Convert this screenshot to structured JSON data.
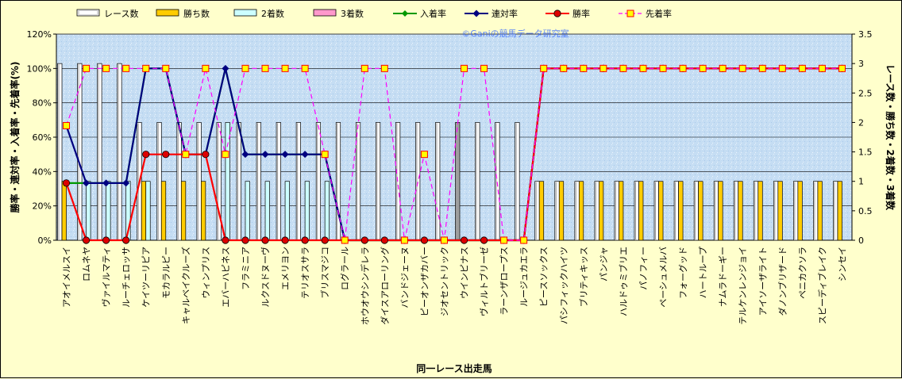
{
  "chart_data": {
    "type": "bar",
    "title": "",
    "xlabel": "同一レース出走馬",
    "ylabel_left": "勝率・連対率・入着率・先着率(%)",
    "ylabel_right": "レース数・勝ち数・2着数・3着数",
    "watermark": "©Ganiの競馬データ研究室",
    "legend_position": "top",
    "grid": true,
    "ylim_left": [
      0,
      120
    ],
    "ylim_right": [
      0,
      3.5
    ],
    "yticks_left": [
      "0%",
      "20%",
      "40%",
      "60%",
      "80%",
      "100%",
      "120%"
    ],
    "yticks_right": [
      "0",
      "0.5",
      "1",
      "1.5",
      "2",
      "2.5",
      "3",
      "3.5"
    ],
    "categories": [
      "アオイメルスイ",
      "ロムネヤ",
      "ヴァイルマティ",
      "ルーチェロッサ",
      "ケイツーリピア",
      "モカラルピー",
      "キャルベイクルーズ",
      "ウィンプリス",
      "エバーハピネス",
      "フラミニア",
      "ルクスドヌーヴ",
      "エメリヨン",
      "テリオスサラ",
      "ブリスマジコ",
      "ログラール",
      "ホウオウシンデレラ",
      "ダイスアローリング",
      "バンドジェーヌ",
      "ピーオンザカバー",
      "ジオセントリック",
      "ウインピナス",
      "ヴィルトブリーゼ",
      "ラーンザロープス",
      "ルージュカエラ",
      "ピースソックス",
      "パシフィックハイツ",
      "ブリティキッス",
      "パンジャ",
      "ハルドゥミブリエ",
      "パノフィー",
      "ペーシュメルバ",
      "フォーグッド",
      "ハートループ",
      "ナムラドーギー",
      "テルケンレンジョイ",
      "アイソーザライト",
      "ダノンブリザード",
      "ペニカクソラ",
      "スピーディブレイク",
      "シンセイ"
    ],
    "series": [
      {
        "name": "レース数",
        "axis": "right",
        "kind": "bar",
        "color": "#ffffff",
        "values": [
          3,
          3,
          3,
          3,
          2,
          2,
          2,
          2,
          2,
          2,
          2,
          2,
          2,
          2,
          2,
          2,
          2,
          2,
          2,
          2,
          2,
          2,
          2,
          2,
          1,
          1,
          1,
          1,
          1,
          1,
          1,
          1,
          1,
          1,
          1,
          1,
          1,
          1,
          1,
          1
        ]
      },
      {
        "name": "勝ち数",
        "axis": "right",
        "kind": "bar",
        "color": "#ffcc00",
        "values": [
          1,
          0,
          0,
          0,
          1,
          1,
          1,
          1,
          0,
          0,
          0,
          0,
          0,
          0,
          0,
          0,
          0,
          0,
          0,
          0,
          0,
          0,
          0,
          0,
          1,
          1,
          1,
          1,
          1,
          1,
          1,
          1,
          1,
          1,
          1,
          1,
          1,
          1,
          1,
          1
        ]
      },
      {
        "name": "2着数",
        "axis": "right",
        "kind": "bar",
        "color": "#ccffff",
        "values": [
          0,
          1,
          1,
          1,
          1,
          0,
          0,
          0,
          2,
          1,
          1,
          1,
          1,
          1,
          0,
          0,
          0,
          0,
          0,
          0,
          0,
          0,
          0,
          0,
          0,
          0,
          0,
          0,
          0,
          0,
          0,
          0,
          0,
          0,
          0,
          0,
          0,
          0,
          0,
          0
        ]
      },
      {
        "name": "3着数",
        "axis": "right",
        "kind": "bar",
        "color": "#ff99cc",
        "values": [
          0,
          0,
          0,
          0,
          0,
          0,
          0,
          0,
          0,
          0,
          0,
          0,
          0,
          0,
          0,
          0,
          0,
          0,
          0,
          0,
          0,
          0,
          0,
          0,
          0,
          0,
          0,
          0,
          0,
          0,
          0,
          0,
          0,
          0,
          0,
          0,
          0,
          0,
          0,
          0
        ]
      },
      {
        "name": "入着率",
        "axis": "left",
        "kind": "line",
        "color": "#009900",
        "values": [
          33.3,
          33.3,
          33.3,
          33.3,
          100,
          100,
          50,
          50,
          100,
          50,
          50,
          50,
          50,
          50,
          0,
          0,
          0,
          0,
          0,
          0,
          0,
          0,
          0,
          0,
          100,
          100,
          100,
          100,
          100,
          100,
          100,
          100,
          100,
          100,
          100,
          100,
          100,
          100,
          100,
          100
        ]
      },
      {
        "name": "連対率",
        "axis": "left",
        "kind": "line",
        "color": "#000080",
        "values": [
          66.7,
          33.3,
          33.3,
          33.3,
          100,
          100,
          50,
          50,
          100,
          50,
          50,
          50,
          50,
          50,
          0,
          0,
          0,
          0,
          0,
          0,
          0,
          0,
          0,
          0,
          100,
          100,
          100,
          100,
          100,
          100,
          100,
          100,
          100,
          100,
          100,
          100,
          100,
          100,
          100,
          100
        ]
      },
      {
        "name": "勝率",
        "axis": "left",
        "kind": "line",
        "color": "#ff0000",
        "values": [
          33.3,
          0,
          0,
          0,
          50,
          50,
          50,
          50,
          0,
          0,
          0,
          0,
          0,
          0,
          0,
          0,
          0,
          0,
          0,
          0,
          0,
          0,
          0,
          0,
          100,
          100,
          100,
          100,
          100,
          100,
          100,
          100,
          100,
          100,
          100,
          100,
          100,
          100,
          100,
          100
        ]
      },
      {
        "name": "先着率",
        "axis": "left",
        "kind": "dashed",
        "color": "#ff00ff",
        "values": [
          66.7,
          100,
          100,
          100,
          100,
          100,
          50,
          100,
          50,
          100,
          100,
          100,
          100,
          50,
          0,
          100,
          100,
          0,
          50,
          0,
          100,
          100,
          0,
          0,
          100,
          100,
          100,
          100,
          100,
          100,
          100,
          100,
          100,
          100,
          100,
          100,
          100,
          100,
          100,
          100
        ]
      }
    ]
  }
}
